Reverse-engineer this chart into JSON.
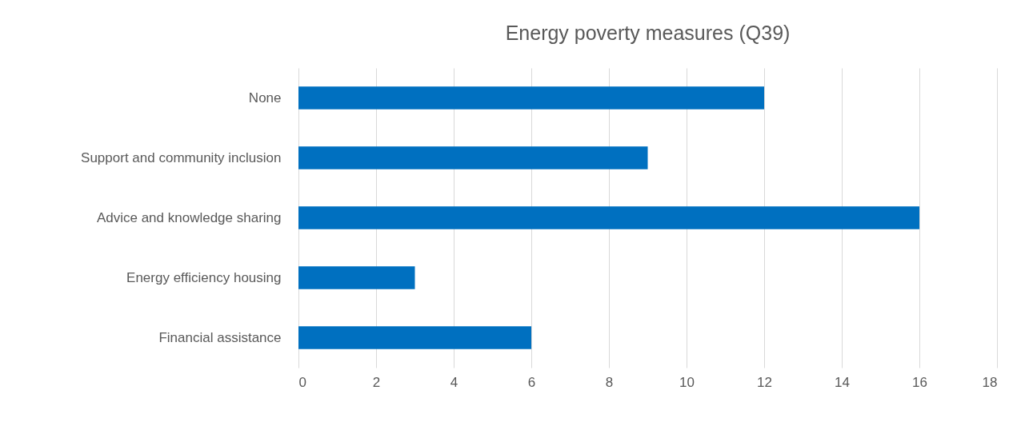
{
  "chart_data": {
    "type": "bar",
    "orientation": "horizontal",
    "title": "Energy poverty measures (Q39)",
    "categories": [
      "None",
      "Support and community inclusion",
      "Advice and knowledge sharing",
      "Energy efficiency housing",
      "Financial assistance"
    ],
    "values": [
      12,
      9,
      16,
      3,
      6
    ],
    "color": "#0070c0",
    "xlim": [
      0,
      18
    ],
    "xticks": [
      0,
      2,
      4,
      6,
      8,
      10,
      12,
      14,
      16,
      18
    ],
    "grid": "x"
  }
}
